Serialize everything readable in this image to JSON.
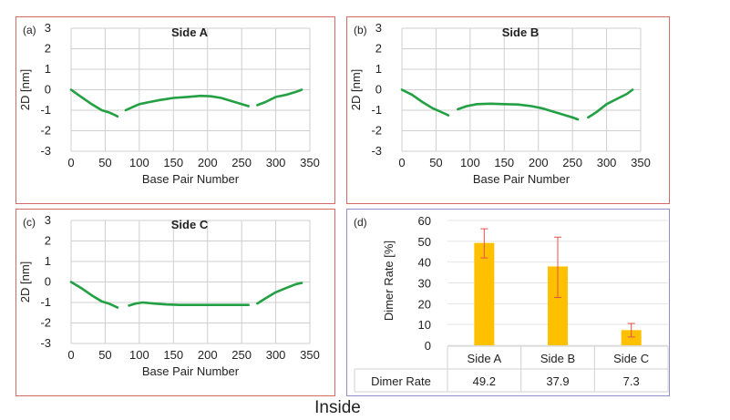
{
  "footer_label": "Inside",
  "colors": {
    "line": "#22a043",
    "bar": "#ffc000",
    "error": "#e8504a",
    "grid": "#cfcfcf"
  },
  "chart_data": [
    {
      "type": "line",
      "panel_label": "(a)",
      "title": "Side A",
      "xlabel": "Base Pair Number",
      "ylabel": "2D [nm]",
      "xlim": [
        0,
        350
      ],
      "ylim": [
        -3,
        3
      ],
      "xticks": [
        0,
        50,
        100,
        150,
        200,
        250,
        300,
        350
      ],
      "yticks": [
        3,
        2,
        1,
        0,
        -1,
        -2,
        -3
      ],
      "segments": [
        {
          "x": [
            0,
            15,
            30,
            45,
            55,
            65,
            68
          ],
          "y": [
            0,
            -0.35,
            -0.7,
            -1.0,
            -1.1,
            -1.25,
            -1.3
          ]
        },
        {
          "x": [
            80,
            90,
            100,
            115,
            130,
            150,
            170,
            190,
            205,
            220,
            235,
            250,
            260
          ],
          "y": [
            -1.0,
            -0.85,
            -0.7,
            -0.6,
            -0.5,
            -0.4,
            -0.35,
            -0.3,
            -0.32,
            -0.4,
            -0.55,
            -0.7,
            -0.8
          ]
        },
        {
          "x": [
            273,
            285,
            300,
            315,
            330,
            338
          ],
          "y": [
            -0.75,
            -0.6,
            -0.35,
            -0.25,
            -0.1,
            0
          ]
        }
      ]
    },
    {
      "type": "line",
      "panel_label": "(b)",
      "title": "Side B",
      "xlabel": "Base Pair Number",
      "ylabel": "2D [nm]",
      "xlim": [
        0,
        350
      ],
      "ylim": [
        -3,
        3
      ],
      "xticks": [
        0,
        50,
        100,
        150,
        200,
        250,
        300,
        350
      ],
      "yticks": [
        3,
        2,
        1,
        0,
        -1,
        -2,
        -3
      ],
      "segments": [
        {
          "x": [
            0,
            15,
            30,
            45,
            55,
            65,
            68
          ],
          "y": [
            0,
            -0.25,
            -0.6,
            -0.9,
            -1.05,
            -1.2,
            -1.25
          ]
        },
        {
          "x": [
            82,
            95,
            110,
            130,
            150,
            170,
            190,
            205,
            220,
            235,
            250,
            258
          ],
          "y": [
            -0.95,
            -0.8,
            -0.7,
            -0.68,
            -0.7,
            -0.72,
            -0.8,
            -0.9,
            -1.05,
            -1.2,
            -1.35,
            -1.45
          ]
        },
        {
          "x": [
            273,
            285,
            300,
            315,
            330,
            338
          ],
          "y": [
            -1.35,
            -1.1,
            -0.7,
            -0.45,
            -0.2,
            0
          ]
        }
      ]
    },
    {
      "type": "line",
      "panel_label": "(c)",
      "title": "Side C",
      "xlabel": "Base Pair Number",
      "ylabel": "2D [nm]",
      "xlim": [
        0,
        350
      ],
      "ylim": [
        -3,
        3
      ],
      "xticks": [
        0,
        50,
        100,
        150,
        200,
        250,
        300,
        350
      ],
      "yticks": [
        3,
        2,
        1,
        0,
        -1,
        -2,
        -3
      ],
      "segments": [
        {
          "x": [
            0,
            15,
            30,
            45,
            55,
            65,
            68
          ],
          "y": [
            0,
            -0.3,
            -0.65,
            -0.95,
            -1.05,
            -1.2,
            -1.25
          ]
        },
        {
          "x": [
            85,
            95,
            105,
            120,
            140,
            160,
            180,
            200,
            220,
            240,
            260
          ],
          "y": [
            -1.15,
            -1.05,
            -1.0,
            -1.05,
            -1.1,
            -1.12,
            -1.12,
            -1.12,
            -1.12,
            -1.12,
            -1.12
          ]
        },
        {
          "x": [
            273,
            285,
            300,
            315,
            330,
            338
          ],
          "y": [
            -1.05,
            -0.8,
            -0.5,
            -0.3,
            -0.1,
            -0.05
          ]
        }
      ]
    },
    {
      "type": "bar",
      "panel_label": "(d)",
      "ylabel": "Dimer Rate [%]",
      "ylim": [
        0,
        60
      ],
      "yticks": [
        0,
        10,
        20,
        30,
        40,
        50,
        60
      ],
      "categories": [
        "Side A",
        "Side B",
        "Side C"
      ],
      "values": [
        49.2,
        37.9,
        7.3
      ],
      "error_low": [
        42,
        23,
        4
      ],
      "error_high": [
        56,
        52,
        10.5
      ],
      "table": {
        "row_label": "Dimer Rate",
        "cells": [
          "49.2",
          "37.9",
          "7.3"
        ]
      }
    }
  ]
}
